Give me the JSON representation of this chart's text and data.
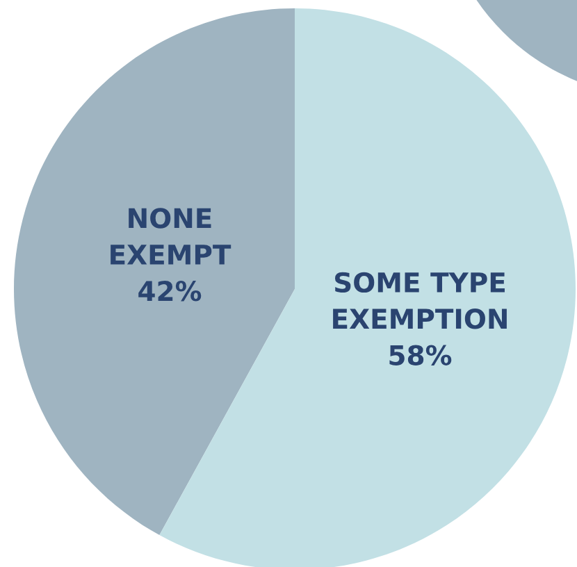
{
  "chart_data": {
    "type": "pie",
    "categories": [
      "NONE EXEMPT",
      "SOME TYPE EXEMPTION"
    ],
    "values": [
      42,
      58
    ],
    "colors": [
      "#9fb4c1",
      "#c2e0e5"
    ],
    "value_labels": [
      "42%",
      "58%"
    ],
    "data_labels": true
  }
}
